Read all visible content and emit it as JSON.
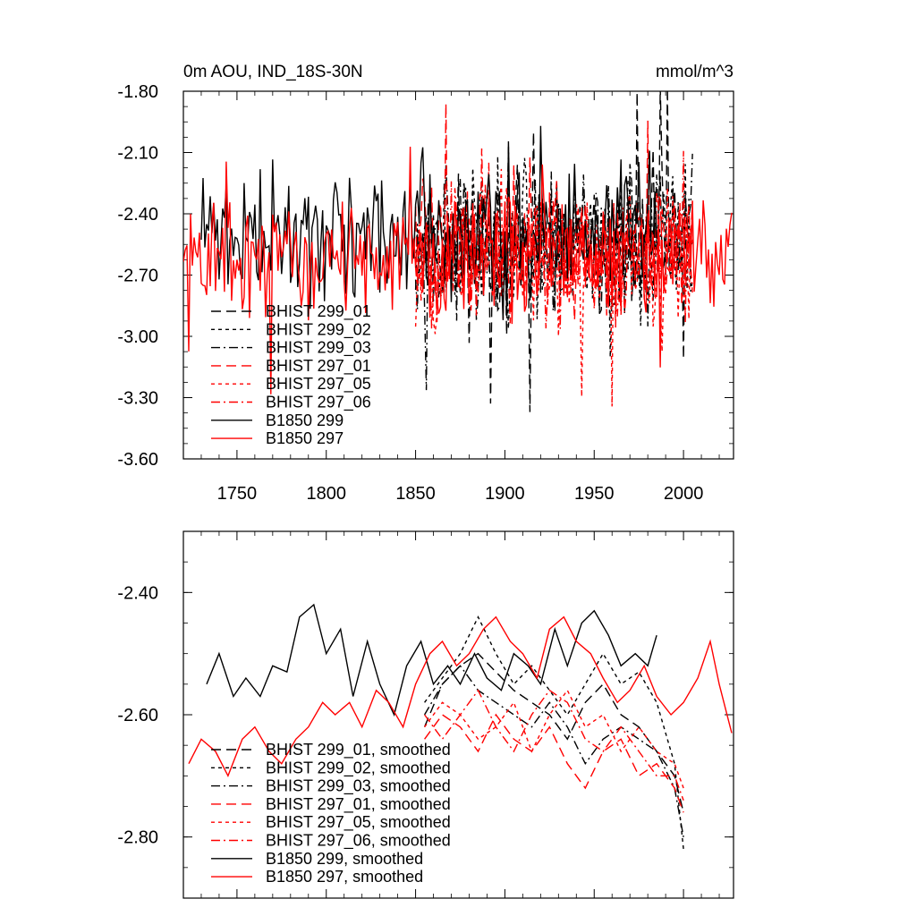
{
  "chart_data": [
    {
      "type": "line",
      "title": "0m AOU, IND_18S-30N",
      "units": "mmol/m^3",
      "xlabel": "",
      "ylabel": "",
      "xlim": [
        1720,
        2028
      ],
      "ylim": [
        -3.6,
        -1.8
      ],
      "xticks": [
        1750,
        1800,
        1850,
        1900,
        1950,
        2000
      ],
      "xtick_labels": [
        "1750",
        "1800",
        "1850",
        "1900",
        "1950",
        "2000"
      ],
      "yticks": [
        -1.8,
        -2.1,
        -2.4,
        -2.7,
        -3.0,
        -3.3,
        -3.6
      ],
      "ytick_labels": [
        "-1.80",
        "-2.10",
        "-2.40",
        "-2.70",
        "-3.00",
        "-3.30",
        "-3.60"
      ],
      "legend_position": "bottom-left",
      "series": [
        {
          "name": "BHIST 299_01",
          "color": "#000000",
          "style": "long-dash",
          "x_start": 1850,
          "x_end": 2005,
          "mean": -2.55,
          "amp": 0.22,
          "seed": 11
        },
        {
          "name": "BHIST 299_02",
          "color": "#000000",
          "style": "short-dash",
          "x_start": 1850,
          "x_end": 2005,
          "mean": -2.55,
          "amp": 0.22,
          "seed": 23
        },
        {
          "name": "BHIST 299_03",
          "color": "#000000",
          "style": "dash-dot",
          "x_start": 1850,
          "x_end": 2005,
          "mean": -2.56,
          "amp": 0.22,
          "seed": 37
        },
        {
          "name": "BHIST 297_01",
          "color": "#ff0000",
          "style": "long-dash",
          "x_start": 1850,
          "x_end": 2005,
          "mean": -2.58,
          "amp": 0.21,
          "seed": 41
        },
        {
          "name": "BHIST 297_05",
          "color": "#ff0000",
          "style": "short-dash",
          "x_start": 1850,
          "x_end": 2005,
          "mean": -2.6,
          "amp": 0.21,
          "seed": 53
        },
        {
          "name": "BHIST 297_06",
          "color": "#ff0000",
          "style": "dash-dot",
          "x_start": 1850,
          "x_end": 2005,
          "mean": -2.6,
          "amp": 0.21,
          "seed": 67
        },
        {
          "name": "B1850 299",
          "color": "#000000",
          "style": "solid",
          "x_start": 1730,
          "x_end": 1985,
          "mean": -2.5,
          "amp": 0.2,
          "seed": 71
        },
        {
          "name": "B1850 297",
          "color": "#ff0000",
          "style": "solid",
          "x_start": 1720,
          "x_end": 2027,
          "mean": -2.6,
          "amp": 0.18,
          "seed": 89
        }
      ]
    },
    {
      "type": "line",
      "title": "",
      "xlabel": "",
      "ylabel": "",
      "xlim": [
        1720,
        2028
      ],
      "ylim": [
        -2.9,
        -2.3
      ],
      "yticks": [
        -2.4,
        -2.6,
        -2.8
      ],
      "ytick_labels": [
        "-2.40",
        "-2.60",
        "-2.80"
      ],
      "xticks": [
        1750,
        1800,
        1850,
        1900,
        1950,
        2000
      ],
      "xtick_labels": [],
      "legend_position": "bottom-left",
      "series": [
        {
          "name": "BHIST 299_01, smoothed",
          "color": "#000000",
          "style": "long-dash",
          "x": [
            1855,
            1865,
            1875,
            1885,
            1895,
            1905,
            1915,
            1925,
            1935,
            1945,
            1955,
            1965,
            1975,
            1985,
            1995,
            2000
          ],
          "y": [
            -2.62,
            -2.55,
            -2.52,
            -2.5,
            -2.53,
            -2.56,
            -2.58,
            -2.6,
            -2.64,
            -2.58,
            -2.55,
            -2.6,
            -2.62,
            -2.66,
            -2.7,
            -2.76
          ]
        },
        {
          "name": "BHIST 299_02, smoothed",
          "color": "#000000",
          "style": "short-dash",
          "x": [
            1855,
            1865,
            1875,
            1885,
            1895,
            1905,
            1915,
            1925,
            1935,
            1945,
            1955,
            1965,
            1975,
            1985,
            1995,
            2000
          ],
          "y": [
            -2.58,
            -2.54,
            -2.5,
            -2.44,
            -2.5,
            -2.55,
            -2.52,
            -2.56,
            -2.6,
            -2.55,
            -2.5,
            -2.55,
            -2.53,
            -2.58,
            -2.68,
            -2.82
          ]
        },
        {
          "name": "BHIST 299_03, smoothed",
          "color": "#000000",
          "style": "dash-dot",
          "x": [
            1855,
            1865,
            1875,
            1885,
            1895,
            1905,
            1915,
            1925,
            1935,
            1945,
            1955,
            1965,
            1975,
            1985,
            1995,
            2000
          ],
          "y": [
            -2.6,
            -2.55,
            -2.52,
            -2.56,
            -2.58,
            -2.6,
            -2.62,
            -2.58,
            -2.62,
            -2.68,
            -2.64,
            -2.62,
            -2.64,
            -2.66,
            -2.72,
            -2.8
          ]
        },
        {
          "name": "BHIST 297_01, smoothed",
          "color": "#ff0000",
          "style": "long-dash",
          "x": [
            1855,
            1865,
            1875,
            1885,
            1895,
            1905,
            1915,
            1925,
            1935,
            1945,
            1955,
            1965,
            1975,
            1985,
            1995,
            2000
          ],
          "y": [
            -2.64,
            -2.6,
            -2.62,
            -2.66,
            -2.6,
            -2.64,
            -2.66,
            -2.62,
            -2.68,
            -2.72,
            -2.66,
            -2.64,
            -2.7,
            -2.68,
            -2.72,
            -2.76
          ]
        },
        {
          "name": "BHIST 297_05, smoothed",
          "color": "#ff0000",
          "style": "short-dash",
          "x": [
            1855,
            1865,
            1875,
            1885,
            1895,
            1905,
            1915,
            1925,
            1935,
            1945,
            1955,
            1965,
            1975,
            1985,
            1995,
            2000
          ],
          "y": [
            -2.62,
            -2.58,
            -2.6,
            -2.64,
            -2.62,
            -2.58,
            -2.66,
            -2.6,
            -2.56,
            -2.62,
            -2.6,
            -2.66,
            -2.62,
            -2.66,
            -2.68,
            -2.72
          ]
        },
        {
          "name": "BHIST 297_06, smoothed",
          "color": "#ff0000",
          "style": "dash-dot",
          "x": [
            1855,
            1865,
            1875,
            1885,
            1895,
            1905,
            1915,
            1925,
            1935,
            1945,
            1955,
            1965,
            1975,
            1985,
            1995,
            2000
          ],
          "y": [
            -2.6,
            -2.64,
            -2.6,
            -2.56,
            -2.62,
            -2.66,
            -2.6,
            -2.56,
            -2.58,
            -2.64,
            -2.66,
            -2.62,
            -2.66,
            -2.7,
            -2.7,
            -2.74
          ]
        },
        {
          "name": "B1850 299, smoothed",
          "color": "#000000",
          "style": "solid",
          "x": [
            1733,
            1740,
            1748,
            1755,
            1763,
            1770,
            1778,
            1785,
            1793,
            1800,
            1808,
            1815,
            1823,
            1830,
            1838,
            1845,
            1853,
            1860,
            1868,
            1875,
            1883,
            1890,
            1898,
            1905,
            1913,
            1920,
            1928,
            1935,
            1943,
            1950,
            1958,
            1965,
            1973,
            1980,
            1985
          ],
          "y": [
            -2.55,
            -2.5,
            -2.57,
            -2.54,
            -2.57,
            -2.52,
            -2.53,
            -2.44,
            -2.42,
            -2.5,
            -2.46,
            -2.57,
            -2.48,
            -2.55,
            -2.6,
            -2.52,
            -2.48,
            -2.55,
            -2.52,
            -2.55,
            -2.5,
            -2.54,
            -2.56,
            -2.5,
            -2.52,
            -2.55,
            -2.46,
            -2.52,
            -2.45,
            -2.43,
            -2.47,
            -2.52,
            -2.5,
            -2.52,
            -2.47
          ]
        },
        {
          "name": "B1850 297, smoothed",
          "color": "#ff0000",
          "style": "solid",
          "x": [
            1723,
            1730,
            1738,
            1745,
            1753,
            1760,
            1768,
            1775,
            1783,
            1790,
            1798,
            1805,
            1813,
            1820,
            1828,
            1835,
            1843,
            1850,
            1858,
            1865,
            1873,
            1880,
            1888,
            1895,
            1903,
            1910,
            1918,
            1925,
            1933,
            1940,
            1948,
            1955,
            1963,
            1970,
            1978,
            1985,
            1993,
            2000,
            2008,
            2015,
            2020,
            2027
          ],
          "y": [
            -2.68,
            -2.64,
            -2.66,
            -2.7,
            -2.64,
            -2.62,
            -2.66,
            -2.68,
            -2.64,
            -2.62,
            -2.58,
            -2.6,
            -2.58,
            -2.62,
            -2.56,
            -2.58,
            -2.62,
            -2.55,
            -2.5,
            -2.48,
            -2.52,
            -2.5,
            -2.46,
            -2.44,
            -2.48,
            -2.5,
            -2.54,
            -2.46,
            -2.44,
            -2.48,
            -2.5,
            -2.54,
            -2.58,
            -2.56,
            -2.52,
            -2.57,
            -2.6,
            -2.58,
            -2.54,
            -2.48,
            -2.55,
            -2.63
          ]
        }
      ]
    }
  ]
}
